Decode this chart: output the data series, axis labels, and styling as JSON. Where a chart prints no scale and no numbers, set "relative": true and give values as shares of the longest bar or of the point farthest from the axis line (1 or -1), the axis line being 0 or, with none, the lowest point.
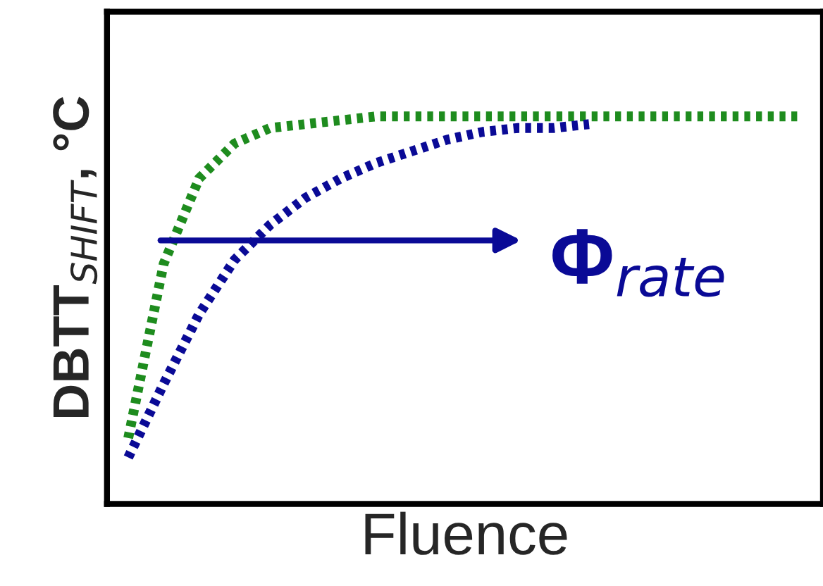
{
  "chart_data": {
    "type": "line",
    "relative": true,
    "xlabel": "Fluence",
    "ylabel": "DBTT$_{SHIFT}$, °C",
    "tick_labels": false,
    "legend": false,
    "line_style": "dotted",
    "marker": "none",
    "categories": [
      null,
      null,
      null,
      null,
      null,
      null,
      null,
      null,
      null,
      null,
      null,
      null,
      null,
      null,
      null,
      null,
      null,
      null,
      null,
      null
    ],
    "series": [
      {
        "color": "#1e8c1e",
        "values": [
          0.17,
          0.62,
          0.84,
          0.93,
          0.97,
          0.98,
          0.99,
          1,
          1,
          1,
          1,
          1,
          1,
          1,
          1,
          1,
          1,
          1,
          1,
          1
        ]
      },
      {
        "color": "#0a0a96",
        "values": [
          0.12,
          0.31,
          0.49,
          0.63,
          0.72,
          0.79,
          0.84,
          0.88,
          0.91,
          0.94,
          0.96,
          0.97,
          0.97,
          0.98,
          null,
          null,
          null,
          null,
          null,
          null
        ]
      }
    ],
    "annotations": [
      "Φ$_{rate}$"
    ]
  }
}
